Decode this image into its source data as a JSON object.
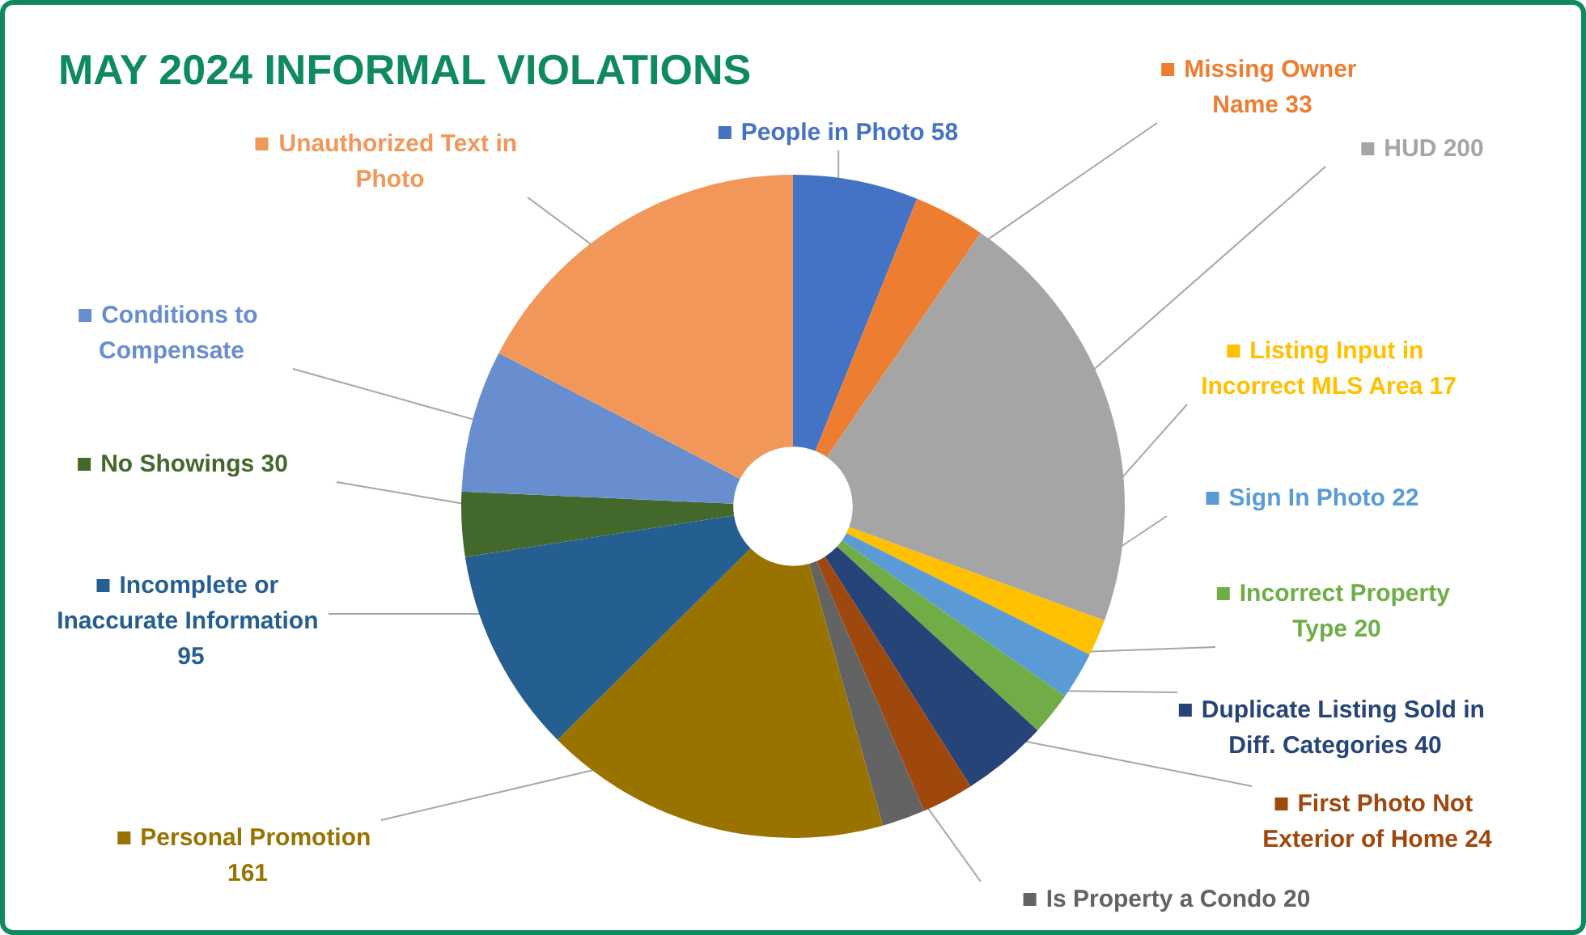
{
  "chart_data": {
    "type": "donut",
    "title": "MAY 2024 INFORMAL VIOLATIONS",
    "categories": [
      "People in Photo",
      "Missing Owner Name",
      "HUD",
      "Listing Input in Incorrect MLS Area",
      "Sign In Photo",
      "Incorrect Property Type",
      "Duplicate Listing Sold in Diff. Categories",
      "First Photo Not Exterior of Home",
      "Is Property a Condo",
      "Personal Promotion",
      "Incomplete or Inaccurate Information",
      "No Showings",
      "Conditions to Compensate",
      "Unauthorized Text in Photo"
    ],
    "values": [
      58,
      33,
      200,
      17,
      22,
      20,
      40,
      24,
      20,
      161,
      95,
      30,
      66,
      165
    ],
    "colors": [
      "#4472c4",
      "#ed7d31",
      "#a5a5a5",
      "#ffc000",
      "#5b9bd5",
      "#70ad47",
      "#264478",
      "#9e480e",
      "#636363",
      "#997300",
      "#255e91",
      "#43682b",
      "#698ed0",
      "#f1975a"
    ],
    "value_labels": [
      "58",
      "33",
      "200",
      "17",
      "22",
      "20",
      "40",
      "24",
      "20",
      "161",
      "95",
      "30",
      null,
      null
    ],
    "legend": "right"
  }
}
